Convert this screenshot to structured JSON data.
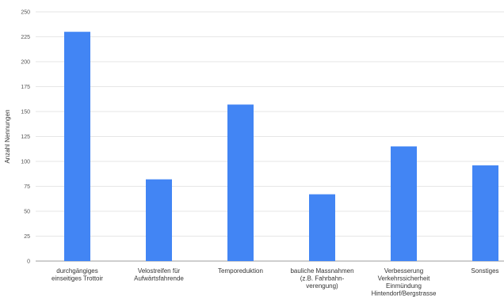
{
  "chart_data": {
    "type": "bar",
    "ylabel": "Anzahl Nennungen",
    "xlabel": "",
    "ylim": [
      0,
      250
    ],
    "yticks": [
      0,
      25,
      50,
      75,
      100,
      125,
      150,
      175,
      200,
      225,
      250
    ],
    "grid": true,
    "categories": [
      [
        "durchgängiges",
        "einseitiges Trottoir"
      ],
      [
        "Velostreifen für",
        "Aufwärtsfahrende"
      ],
      [
        "Temporeduktion"
      ],
      [
        "bauliche Massnahmen",
        "(z.B. Fahrbahn-",
        "verengung)"
      ],
      [
        "Verbesserung",
        "Verkehrssicherheit",
        "Einmündung",
        "Hintendorf/Bergstrasse"
      ],
      [
        "Sonstiges"
      ]
    ],
    "values": [
      230,
      82,
      157,
      67,
      115,
      96
    ],
    "colors": {
      "bar": "#4285f4"
    }
  }
}
